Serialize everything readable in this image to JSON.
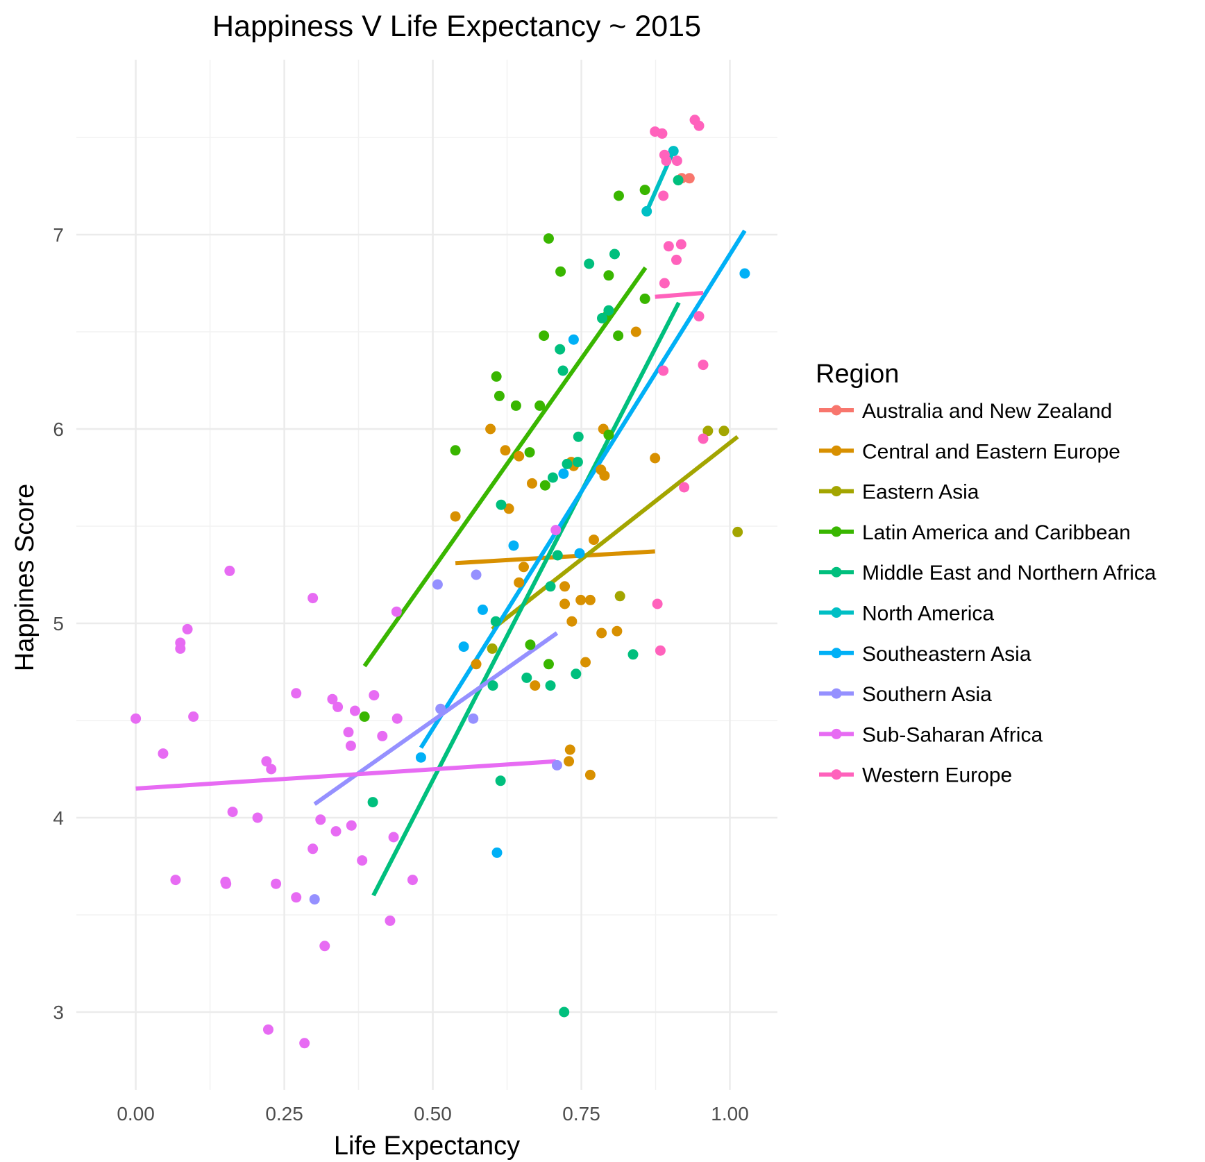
{
  "chart_data": {
    "type": "scatter",
    "title": "Happiness V Life Expectancy ~ 2015",
    "xlabel": "Life Expectancy",
    "ylabel": "Happines Score",
    "xlim": [
      -0.1,
      1.08
    ],
    "ylim": [
      2.6,
      7.9
    ],
    "x_ticks": [
      0.0,
      0.25,
      0.5,
      0.75,
      1.0
    ],
    "x_tick_labels": [
      "0.00",
      "0.25",
      "0.50",
      "0.75",
      "1.00"
    ],
    "y_ticks": [
      3,
      4,
      5,
      6,
      7
    ],
    "y_tick_labels": [
      "3",
      "4",
      "5",
      "6",
      "7"
    ],
    "grid": true,
    "legend": {
      "title": "Region",
      "placement": "right"
    },
    "series": [
      {
        "name": "Australia and New Zealand",
        "color": "#F8766D",
        "points": [
          [
            0.919,
            7.29
          ],
          [
            0.932,
            7.29
          ]
        ],
        "fit": [
          [
            0.919,
            7.286
          ],
          [
            0.932,
            7.286
          ]
        ]
      },
      {
        "name": "Central and Eastern Europe",
        "color": "#D89000",
        "points": [
          [
            0.597,
            6.0
          ],
          [
            0.787,
            6.0
          ],
          [
            0.622,
            5.89
          ],
          [
            0.645,
            5.86
          ],
          [
            0.874,
            5.85
          ],
          [
            0.733,
            5.83
          ],
          [
            0.737,
            5.81
          ],
          [
            0.783,
            5.79
          ],
          [
            0.789,
            5.76
          ],
          [
            0.667,
            5.72
          ],
          [
            0.538,
            5.55
          ],
          [
            0.628,
            5.59
          ],
          [
            0.771,
            5.43
          ],
          [
            0.653,
            5.29
          ],
          [
            0.645,
            5.21
          ],
          [
            0.722,
            5.19
          ],
          [
            0.722,
            5.1
          ],
          [
            0.749,
            5.12
          ],
          [
            0.765,
            5.12
          ],
          [
            0.734,
            5.01
          ],
          [
            0.784,
            4.95
          ],
          [
            0.81,
            4.96
          ],
          [
            0.573,
            4.79
          ],
          [
            0.757,
            4.8
          ],
          [
            0.672,
            4.68
          ],
          [
            0.731,
            4.35
          ],
          [
            0.729,
            4.29
          ],
          [
            0.765,
            4.22
          ],
          [
            0.842,
            6.5
          ]
        ],
        "fit": [
          [
            0.538,
            5.31
          ],
          [
            0.874,
            5.37
          ]
        ]
      },
      {
        "name": "Eastern Asia",
        "color": "#A3A500",
        "points": [
          [
            0.963,
            5.99
          ],
          [
            0.99,
            5.99
          ],
          [
            1.013,
            5.47
          ],
          [
            0.815,
            5.14
          ],
          [
            0.6,
            4.87
          ]
        ],
        "fit": [
          [
            0.6,
            4.97
          ],
          [
            1.013,
            5.96
          ]
        ]
      },
      {
        "name": "Latin America and Caribbean",
        "color": "#39B600",
        "points": [
          [
            0.695,
            6.98
          ],
          [
            0.813,
            7.2
          ],
          [
            0.857,
            7.23
          ],
          [
            0.715,
            6.81
          ],
          [
            0.796,
            6.79
          ],
          [
            0.857,
            6.67
          ],
          [
            0.793,
            6.58
          ],
          [
            0.812,
            6.48
          ],
          [
            0.687,
            6.48
          ],
          [
            0.607,
            6.27
          ],
          [
            0.612,
            6.17
          ],
          [
            0.64,
            6.12
          ],
          [
            0.68,
            6.12
          ],
          [
            0.538,
            5.89
          ],
          [
            0.663,
            5.88
          ],
          [
            0.689,
            5.71
          ],
          [
            0.796,
            5.97
          ],
          [
            0.664,
            4.89
          ],
          [
            0.695,
            4.79
          ],
          [
            0.385,
            4.52
          ]
        ],
        "fit": [
          [
            0.385,
            4.78
          ],
          [
            0.858,
            6.83
          ]
        ]
      },
      {
        "name": "Middle East and Northern Africa",
        "color": "#00BF7D",
        "points": [
          [
            0.913,
            7.28
          ],
          [
            0.763,
            6.85
          ],
          [
            0.806,
            6.9
          ],
          [
            0.796,
            6.61
          ],
          [
            0.785,
            6.57
          ],
          [
            0.714,
            6.41
          ],
          [
            0.719,
            6.3
          ],
          [
            0.745,
            5.96
          ],
          [
            0.726,
            5.82
          ],
          [
            0.744,
            5.83
          ],
          [
            0.702,
            5.75
          ],
          [
            0.615,
            5.61
          ],
          [
            0.71,
            5.35
          ],
          [
            0.698,
            5.19
          ],
          [
            0.606,
            5.01
          ],
          [
            0.658,
            4.72
          ],
          [
            0.698,
            4.68
          ],
          [
            0.741,
            4.74
          ],
          [
            0.837,
            4.84
          ],
          [
            0.601,
            4.68
          ],
          [
            0.614,
            4.19
          ],
          [
            0.399,
            4.08
          ],
          [
            0.721,
            3.0
          ]
        ],
        "fit": [
          [
            0.4,
            3.6
          ],
          [
            0.914,
            6.65
          ]
        ]
      },
      {
        "name": "North America",
        "color": "#00BFC4",
        "points": [
          [
            0.86,
            7.12
          ],
          [
            0.905,
            7.43
          ]
        ],
        "fit": [
          [
            0.86,
            7.12
          ],
          [
            0.905,
            7.43
          ]
        ]
      },
      {
        "name": "Southeastern Asia",
        "color": "#00B0F6",
        "points": [
          [
            1.025,
            6.8
          ],
          [
            0.737,
            6.46
          ],
          [
            0.72,
            5.77
          ],
          [
            0.636,
            5.4
          ],
          [
            0.747,
            5.36
          ],
          [
            0.584,
            5.07
          ],
          [
            0.552,
            4.88
          ],
          [
            0.48,
            4.31
          ],
          [
            0.608,
            3.82
          ]
        ],
        "fit": [
          [
            0.48,
            4.36
          ],
          [
            1.025,
            7.02
          ]
        ]
      },
      {
        "name": "Southern Asia",
        "color": "#9590FF",
        "points": [
          [
            0.508,
            5.2
          ],
          [
            0.573,
            5.25
          ],
          [
            0.513,
            4.56
          ],
          [
            0.568,
            4.51
          ],
          [
            0.709,
            4.27
          ],
          [
            0.301,
            3.58
          ]
        ],
        "fit": [
          [
            0.301,
            4.07
          ],
          [
            0.709,
            4.95
          ]
        ]
      },
      {
        "name": "Sub-Saharan Africa",
        "color": "#E76BF3",
        "points": [
          [
            0.158,
            5.27
          ],
          [
            0.298,
            5.13
          ],
          [
            0.707,
            5.48
          ],
          [
            0.439,
            5.06
          ],
          [
            0.087,
            4.97
          ],
          [
            0.075,
            4.9
          ],
          [
            0.075,
            4.87
          ],
          [
            0.27,
            4.64
          ],
          [
            0.331,
            4.61
          ],
          [
            0.34,
            4.57
          ],
          [
            0.369,
            4.55
          ],
          [
            0.401,
            4.63
          ],
          [
            0.0,
            4.51
          ],
          [
            0.097,
            4.52
          ],
          [
            0.44,
            4.51
          ],
          [
            0.358,
            4.44
          ],
          [
            0.362,
            4.37
          ],
          [
            0.415,
            4.42
          ],
          [
            0.046,
            4.33
          ],
          [
            0.22,
            4.29
          ],
          [
            0.228,
            4.25
          ],
          [
            0.163,
            4.03
          ],
          [
            0.205,
            4.0
          ],
          [
            0.311,
            3.99
          ],
          [
            0.337,
            3.93
          ],
          [
            0.363,
            3.96
          ],
          [
            0.434,
            3.9
          ],
          [
            0.298,
            3.84
          ],
          [
            0.381,
            3.78
          ],
          [
            0.067,
            3.68
          ],
          [
            0.151,
            3.67
          ],
          [
            0.152,
            3.66
          ],
          [
            0.236,
            3.66
          ],
          [
            0.466,
            3.68
          ],
          [
            0.27,
            3.59
          ],
          [
            0.428,
            3.47
          ],
          [
            0.318,
            3.34
          ],
          [
            0.223,
            2.91
          ],
          [
            0.284,
            2.84
          ]
        ],
        "fit": [
          [
            0.0,
            4.15
          ],
          [
            0.707,
            4.29
          ]
        ]
      },
      {
        "name": "Western Europe",
        "color": "#FF62BC",
        "points": [
          [
            0.874,
            7.53
          ],
          [
            0.886,
            7.52
          ],
          [
            0.941,
            7.59
          ],
          [
            0.948,
            7.56
          ],
          [
            0.89,
            7.41
          ],
          [
            0.893,
            7.38
          ],
          [
            0.911,
            7.38
          ],
          [
            0.888,
            7.2
          ],
          [
            0.897,
            6.94
          ],
          [
            0.918,
            6.95
          ],
          [
            0.91,
            6.87
          ],
          [
            0.89,
            6.75
          ],
          [
            0.948,
            6.58
          ],
          [
            0.888,
            6.3
          ],
          [
            0.955,
            6.33
          ],
          [
            0.955,
            5.95
          ],
          [
            0.923,
            5.7
          ],
          [
            0.878,
            5.1
          ],
          [
            0.883,
            4.86
          ]
        ],
        "fit": [
          [
            0.874,
            6.68
          ],
          [
            0.955,
            6.7
          ]
        ]
      }
    ]
  }
}
